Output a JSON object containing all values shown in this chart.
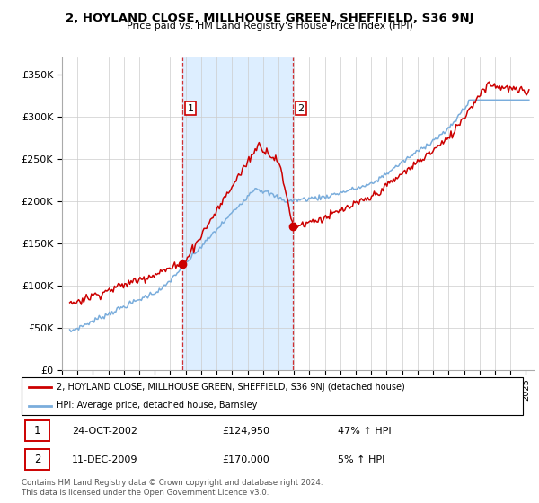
{
  "title": "2, HOYLAND CLOSE, MILLHOUSE GREEN, SHEFFIELD, S36 9NJ",
  "subtitle": "Price paid vs. HM Land Registry's House Price Index (HPI)",
  "ylabel_ticks": [
    "£0",
    "£50K",
    "£100K",
    "£150K",
    "£200K",
    "£250K",
    "£300K",
    "£350K"
  ],
  "ylim": [
    0,
    370000
  ],
  "xlim_start": 1995.4,
  "xlim_end": 2025.5,
  "sale1_date": 2002.81,
  "sale1_price": 124950,
  "sale1_label": "1",
  "sale2_date": 2009.95,
  "sale2_price": 170000,
  "sale2_label": "2",
  "legend_line1": "2, HOYLAND CLOSE, MILLHOUSE GREEN, SHEFFIELD, S36 9NJ (detached house)",
  "legend_line2": "HPI: Average price, detached house, Barnsley",
  "table_row1_num": "1",
  "table_row1_date": "24-OCT-2002",
  "table_row1_price": "£124,950",
  "table_row1_hpi": "47% ↑ HPI",
  "table_row2_num": "2",
  "table_row2_date": "11-DEC-2009",
  "table_row2_price": "£170,000",
  "table_row2_hpi": "5% ↑ HPI",
  "footnote": "Contains HM Land Registry data © Crown copyright and database right 2024.\nThis data is licensed under the Open Government Licence v3.0.",
  "red_color": "#cc0000",
  "blue_color": "#7aaddc",
  "shade_color": "#ddeeff",
  "vline_color": "#cc0000",
  "grid_color": "#cccccc",
  "background_color": "#ffffff"
}
